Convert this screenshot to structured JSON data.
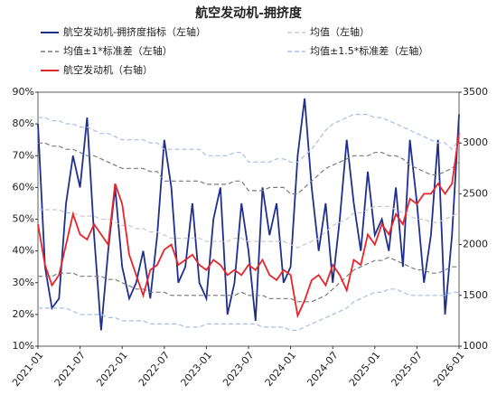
{
  "chart_data": {
    "type": "line",
    "title": "航空发动机-拥挤度",
    "x": [
      "2021-01",
      "2021-02",
      "2021-03",
      "2021-04",
      "2021-05",
      "2021-06",
      "2021-07",
      "2021-08",
      "2021-09",
      "2021-10",
      "2021-11",
      "2021-12",
      "2022-01",
      "2022-02",
      "2022-03",
      "2022-04",
      "2022-05",
      "2022-06",
      "2022-07",
      "2022-08",
      "2022-09",
      "2022-10",
      "2022-11",
      "2022-12",
      "2023-01",
      "2023-02",
      "2023-03",
      "2023-04",
      "2023-05",
      "2023-06",
      "2023-07",
      "2023-08",
      "2023-09",
      "2023-10",
      "2023-11",
      "2023-12",
      "2024-01",
      "2024-02",
      "2024-03",
      "2024-04",
      "2024-05",
      "2024-06",
      "2024-07",
      "2024-08",
      "2024-09",
      "2024-10",
      "2024-11",
      "2024-12",
      "2025-01",
      "2025-02",
      "2025-03",
      "2025-04",
      "2025-05",
      "2025-06",
      "2025-07",
      "2025-08",
      "2025-09",
      "2025-10",
      "2025-11",
      "2025-12",
      "2026-01"
    ],
    "xticks": [
      "2021-01",
      "2021-07",
      "2022-01",
      "2022-07",
      "2023-01",
      "2023-07",
      "2024-01",
      "2024-07",
      "2025-01",
      "2025-07",
      "2026-01"
    ],
    "ylim": [
      10,
      90
    ],
    "yticks": [
      {
        "value": 10,
        "label": "10%"
      },
      {
        "value": 20,
        "label": "20%"
      },
      {
        "value": 30,
        "label": "30%"
      },
      {
        "value": 40,
        "label": "40%"
      },
      {
        "value": 50,
        "label": "50%"
      },
      {
        "value": 60,
        "label": "60%"
      },
      {
        "value": 70,
        "label": "70%"
      },
      {
        "value": 80,
        "label": "80%"
      },
      {
        "value": 90,
        "label": "90%"
      }
    ],
    "y2lim": [
      1000,
      3500
    ],
    "y2ticks": [
      1000,
      1500,
      2000,
      2500,
      3000,
      3500
    ],
    "series": [
      {
        "name": "航空发动机-拥挤度指标（左轴）",
        "color": "#1f2f8f",
        "axis": "y",
        "dash": false,
        "values": [
          80,
          35,
          22,
          25,
          55,
          70,
          60,
          82,
          45,
          15,
          40,
          60,
          35,
          25,
          30,
          40,
          25,
          45,
          75,
          60,
          30,
          35,
          55,
          30,
          25,
          50,
          60,
          20,
          30,
          55,
          40,
          18,
          60,
          45,
          55,
          30,
          35,
          70,
          88,
          60,
          40,
          55,
          30,
          50,
          75,
          55,
          40,
          65,
          45,
          50,
          40,
          60,
          35,
          75,
          55,
          30,
          45,
          75,
          20,
          45,
          83
        ]
      },
      {
        "name": "均值（左轴）",
        "color": "#c8c8c8",
        "axis": "y",
        "dash": true,
        "values": [
          53,
          53,
          53,
          53,
          52,
          52,
          51,
          51,
          51,
          50,
          50,
          49,
          48,
          48,
          47,
          47,
          46,
          46,
          45,
          44,
          44,
          44,
          44,
          44,
          43,
          43,
          43,
          43,
          44,
          44,
          43,
          43,
          43,
          43,
          43,
          43,
          42,
          41,
          42,
          43,
          44,
          46,
          48,
          49,
          50,
          52,
          52,
          53,
          54,
          54,
          54,
          53,
          52,
          51,
          50,
          50,
          49,
          49,
          50,
          51,
          52
        ]
      },
      {
        "name": "均值±1*标准差（左轴）",
        "color": "#7a7a7a",
        "axis": "y",
        "dash": true,
        "upper": [
          74,
          74,
          73,
          73,
          72,
          72,
          71,
          70,
          70,
          69,
          68,
          67,
          66,
          66,
          66,
          66,
          65,
          65,
          62,
          62,
          62,
          62,
          62,
          62,
          61,
          61,
          61,
          61,
          62,
          62,
          59,
          59,
          59,
          60,
          60,
          60,
          58,
          58,
          60,
          62,
          64,
          66,
          67,
          68,
          69,
          70,
          70,
          70,
          71,
          71,
          70,
          70,
          69,
          67,
          66,
          65,
          64,
          64,
          65,
          66,
          68
        ],
        "lower": [
          32,
          32,
          32,
          33,
          33,
          33,
          32,
          32,
          32,
          32,
          31,
          31,
          30,
          29,
          28,
          28,
          27,
          27,
          27,
          26,
          26,
          26,
          26,
          26,
          26,
          26,
          26,
          26,
          26,
          27,
          26,
          26,
          26,
          25,
          25,
          25,
          25,
          24,
          24,
          24,
          25,
          26,
          28,
          30,
          32,
          34,
          35,
          36,
          37,
          37,
          38,
          37,
          36,
          35,
          34,
          34,
          33,
          33,
          34,
          35,
          35
        ]
      },
      {
        "name": "均值±1.5*标准差（左轴）",
        "color": "#a9bde6",
        "axis": "y",
        "dash": true,
        "upper": [
          82,
          82,
          81,
          81,
          80,
          80,
          79,
          79,
          78,
          77,
          77,
          76,
          75,
          75,
          75,
          75,
          74,
          74,
          72,
          72,
          72,
          72,
          72,
          72,
          70,
          70,
          70,
          70,
          71,
          71,
          68,
          68,
          68,
          68,
          69,
          69,
          68,
          68,
          70,
          72,
          75,
          78,
          80,
          81,
          82,
          83,
          83,
          83,
          82,
          82,
          81,
          80,
          79,
          78,
          77,
          76,
          75,
          74,
          74,
          72,
          75
        ],
        "lower": [
          22,
          22,
          22,
          22,
          22,
          21,
          20,
          20,
          20,
          20,
          19,
          19,
          18,
          18,
          18,
          18,
          17,
          17,
          17,
          17,
          17,
          16,
          16,
          16,
          17,
          17,
          17,
          17,
          17,
          17,
          17,
          17,
          16,
          16,
          16,
          16,
          15,
          15,
          16,
          17,
          18,
          19,
          20,
          21,
          22,
          24,
          25,
          26,
          27,
          27,
          28,
          28,
          27,
          26,
          26,
          26,
          26,
          26,
          26,
          27,
          27
        ]
      },
      {
        "name": "航空发动机（右轴）",
        "color": "#e8252a",
        "axis": "y2",
        "dash": false,
        "values": [
          2200,
          1800,
          1600,
          1700,
          2000,
          2300,
          2100,
          2050,
          2200,
          2100,
          2000,
          2600,
          2400,
          1900,
          1700,
          1500,
          1750,
          1800,
          1950,
          2000,
          1800,
          1850,
          1900,
          1800,
          1750,
          1850,
          1800,
          1700,
          1750,
          1700,
          1800,
          1750,
          1850,
          1700,
          1650,
          1750,
          1700,
          1300,
          1450,
          1650,
          1700,
          1600,
          1800,
          1700,
          1550,
          1850,
          1800,
          2100,
          2000,
          2200,
          2100,
          2300,
          2200,
          2450,
          2400,
          2500,
          2500,
          2600,
          2500,
          2600,
          3100
        ]
      }
    ]
  }
}
